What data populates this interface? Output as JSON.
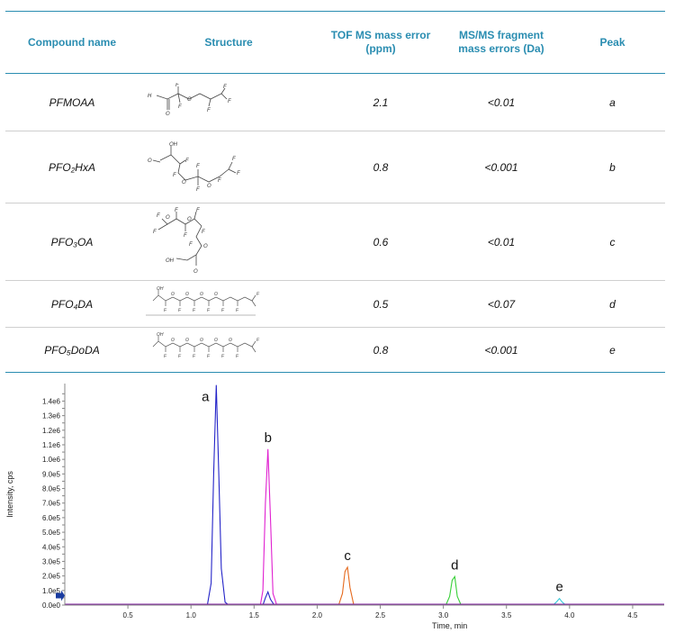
{
  "table": {
    "headers": [
      "Compound name",
      "Structure",
      "TOF MS mass error (ppm)",
      "MS/MS fragment mass errors (Da)",
      "Peak"
    ],
    "rows": [
      {
        "name": "PFMOAA",
        "ppm": "2.1",
        "frag": "<0.01",
        "peak": "a"
      },
      {
        "name": "PFO₂HxA",
        "ppm": "0.8",
        "frag": "<0.001",
        "peak": "b"
      },
      {
        "name": "PFO₃OA",
        "ppm": "0.6",
        "frag": "<0.01",
        "peak": "c"
      },
      {
        "name": "PFO₄DA",
        "ppm": "0.5",
        "frag": "<0.07",
        "peak": "d"
      },
      {
        "name": "PFO₅DoDA",
        "ppm": "0.8",
        "frag": "<0.001",
        "peak": "e"
      }
    ],
    "atoms": {
      "oh": "OH",
      "ho": "H",
      "o": "O",
      "f": "F"
    }
  },
  "chart_data": {
    "type": "line",
    "xlabel": "Time, min",
    "ylabel": "Intensity, cps",
    "xlim": [
      0.0,
      4.75
    ],
    "ylim": [
      0,
      1520000
    ],
    "xticks": [
      "0.5",
      "1.0",
      "1.5",
      "2.0",
      "2.5",
      "3.0",
      "3.5",
      "4.0",
      "4.5"
    ],
    "xtick_values": [
      0.5,
      1.0,
      1.5,
      2.0,
      2.5,
      3.0,
      3.5,
      4.0,
      4.5
    ],
    "yticks": [
      "0.0e0",
      "5.0e4",
      "1.0e5",
      "1.5e5",
      "2.0e5",
      "2.5e5",
      "3.0e5",
      "3.5e5",
      "4.0e5",
      "4.5e5",
      "5.0e5",
      "5.5e5",
      "6.0e5",
      "6.5e5",
      "7.0e5",
      "7.5e5",
      "8.0e5",
      "8.5e5",
      "9.0e5",
      "9.5e5",
      "1.0e6",
      "1.05e6",
      "1.1e6",
      "1.15e6",
      "1.2e6",
      "1.25e6",
      "1.3e6",
      "1.35e6",
      "1.4e6",
      "1.45e6"
    ],
    "ytick_values": [
      0,
      50000,
      100000,
      150000,
      200000,
      250000,
      300000,
      350000,
      400000,
      450000,
      500000,
      550000,
      600000,
      650000,
      700000,
      750000,
      800000,
      850000,
      900000,
      950000,
      1000000,
      1050000,
      1100000,
      1150000,
      1200000,
      1250000,
      1300000,
      1350000,
      1400000,
      1450000
    ],
    "ytick_shown": [
      "0.0e0",
      "",
      "1.0e5",
      "",
      "2.0e5",
      "",
      "3.0e5",
      "",
      "4.0e5",
      "",
      "5.0e5",
      "",
      "6.0e5",
      "",
      "7.0e5",
      "",
      "8.0e5",
      "",
      "9.0e5",
      "",
      "1.0e6",
      "",
      "1.1e6",
      "",
      "1.2e6",
      "",
      "1.3e6",
      "",
      "1.4e6",
      ""
    ],
    "series": [
      {
        "label": "a",
        "color": "#2323c8",
        "x": [
          1.13,
          1.16,
          1.18,
          1.2,
          1.22,
          1.24,
          1.27,
          1.3
        ],
        "y": [
          0,
          150000,
          900000,
          1510000,
          900000,
          250000,
          20000,
          0
        ]
      },
      {
        "label": "b",
        "color": "#e020d0",
        "x": [
          1.55,
          1.57,
          1.59,
          1.61,
          1.63,
          1.65,
          1.68
        ],
        "y": [
          0,
          100000,
          700000,
          1070000,
          600000,
          80000,
          0
        ]
      },
      {
        "label": "b-minor",
        "color": "#2323c8",
        "x": [
          1.57,
          1.59,
          1.61,
          1.63,
          1.66
        ],
        "y": [
          0,
          50000,
          90000,
          40000,
          0
        ]
      },
      {
        "label": "c",
        "color": "#e56a1e",
        "x": [
          2.17,
          2.2,
          2.22,
          2.24,
          2.26,
          2.29
        ],
        "y": [
          0,
          80000,
          230000,
          260000,
          120000,
          0
        ]
      },
      {
        "label": "d",
        "color": "#38d038",
        "x": [
          3.02,
          3.05,
          3.07,
          3.09,
          3.11,
          3.14
        ],
        "y": [
          0,
          60000,
          170000,
          195000,
          60000,
          0
        ]
      },
      {
        "label": "e",
        "color": "#30c8d8",
        "x": [
          3.87,
          3.9,
          3.92,
          3.94,
          3.97
        ],
        "y": [
          0,
          25000,
          45000,
          22000,
          0
        ]
      }
    ],
    "annotations": [
      "a",
      "b",
      "c",
      "d",
      "e"
    ],
    "baseline_color": "#8020a0",
    "marker_color": "#1a3ca0"
  }
}
